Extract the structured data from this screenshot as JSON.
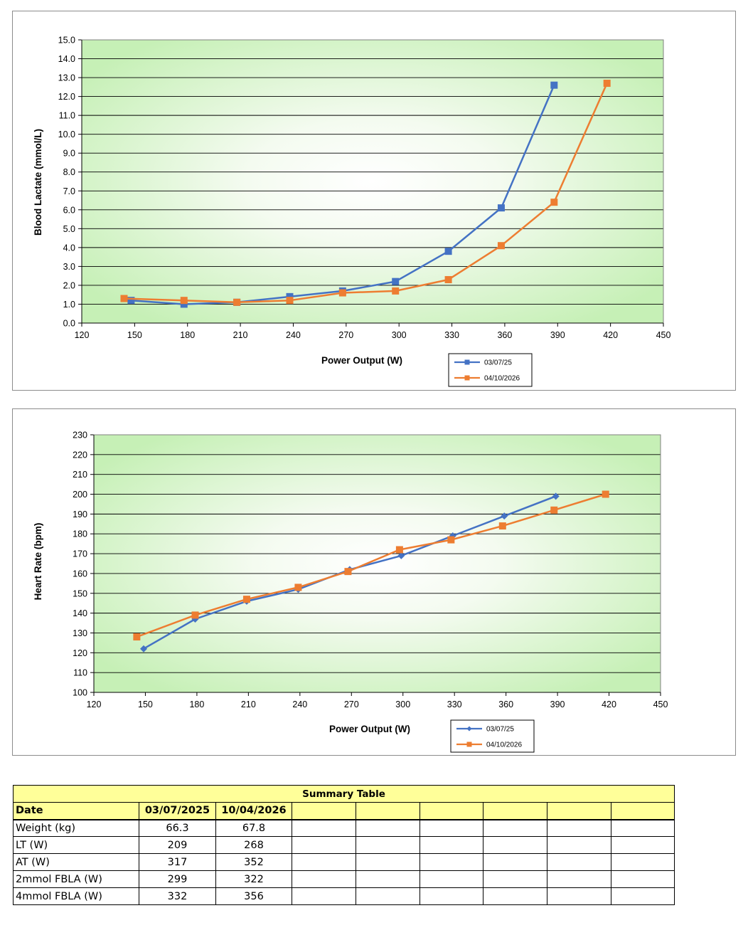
{
  "chart_data": [
    {
      "type": "line",
      "title": "",
      "xlabel": "Power Output (W)",
      "ylabel": "Blood Lactate (mmol/L)",
      "xlim": [
        120,
        450
      ],
      "ylim": [
        0,
        15
      ],
      "xticks": [
        120,
        150,
        180,
        210,
        240,
        270,
        300,
        330,
        360,
        390,
        420,
        450
      ],
      "xtick_labels": [
        "120",
        "150",
        "180",
        "210",
        "240",
        "270",
        "300",
        "330",
        "360",
        "390",
        "420",
        "450"
      ],
      "yticks": [
        0,
        1,
        2,
        3,
        4,
        5,
        6,
        7,
        8,
        9,
        10,
        11,
        12,
        13,
        14,
        15
      ],
      "ytick_labels": [
        "0.0",
        "1.0",
        "2.0",
        "3.0",
        "4.0",
        "5.0",
        "6.0",
        "7.0",
        "8.0",
        "9.0",
        "10.0",
        "11.0",
        "12.0",
        "13.0",
        "14.0",
        "15.0"
      ],
      "grid": true,
      "legend_position": "bottom-right",
      "marker": "square",
      "series": [
        {
          "name": "03/07/25",
          "color": "#4472c4",
          "x": [
            148,
            178,
            208,
            238,
            268,
            298,
            328,
            358,
            388
          ],
          "y": [
            1.2,
            1.0,
            1.1,
            1.4,
            1.7,
            2.2,
            3.8,
            6.1,
            12.6
          ]
        },
        {
          "name": "04/10/2026",
          "color": "#ed7d31",
          "x": [
            144,
            178,
            208,
            238,
            268,
            298,
            328,
            358,
            388,
            418
          ],
          "y": [
            1.3,
            1.2,
            1.1,
            1.2,
            1.6,
            1.7,
            2.3,
            4.1,
            6.4,
            12.7
          ]
        }
      ]
    },
    {
      "type": "line",
      "title": "",
      "xlabel": "Power Output (W)",
      "ylabel": "Heart Rate (bpm)",
      "xlim": [
        120,
        450
      ],
      "ylim": [
        100,
        230
      ],
      "xticks": [
        120,
        150,
        180,
        210,
        240,
        270,
        300,
        330,
        360,
        390,
        420,
        450
      ],
      "xtick_labels": [
        "120",
        "150",
        "180",
        "210",
        "240",
        "270",
        "300",
        "330",
        "360",
        "390",
        "420",
        "450"
      ],
      "yticks": [
        100,
        110,
        120,
        130,
        140,
        150,
        160,
        170,
        180,
        190,
        200,
        210,
        220,
        230
      ],
      "ytick_labels": [
        "100",
        "110",
        "120",
        "130",
        "140",
        "150",
        "160",
        "170",
        "180",
        "190",
        "200",
        "210",
        "220",
        "230"
      ],
      "grid": true,
      "legend_position": "bottom-right",
      "series": [
        {
          "name": "03/07/25",
          "color": "#4472c4",
          "marker": "diamond",
          "x": [
            149,
            179,
            209,
            239,
            269,
            299,
            329,
            359,
            389
          ],
          "y": [
            122,
            137,
            146,
            152,
            162,
            169,
            179,
            189,
            199
          ]
        },
        {
          "name": "04/10/2026",
          "color": "#ed7d31",
          "marker": "square",
          "x": [
            145,
            179,
            209,
            239,
            268,
            298,
            328,
            358,
            388,
            418
          ],
          "y": [
            128,
            139,
            147,
            153,
            161,
            172,
            177,
            184,
            192,
            200
          ]
        }
      ]
    }
  ],
  "summary": {
    "title": "Summary Table",
    "date_label": "Date",
    "dates": [
      "03/07/2025",
      "10/04/2026"
    ],
    "rows": [
      {
        "label": "Weight (kg)",
        "values": [
          "66.3",
          "67.8"
        ]
      },
      {
        "label": "LT (W)",
        "values": [
          "209",
          "268"
        ]
      },
      {
        "label": "AT (W)",
        "values": [
          "317",
          "352"
        ]
      },
      {
        "label": "2mmol FBLA (W)",
        "values": [
          "299",
          "322"
        ]
      },
      {
        "label": "4mmol FBLA (W)",
        "values": [
          "332",
          "356"
        ]
      }
    ]
  }
}
